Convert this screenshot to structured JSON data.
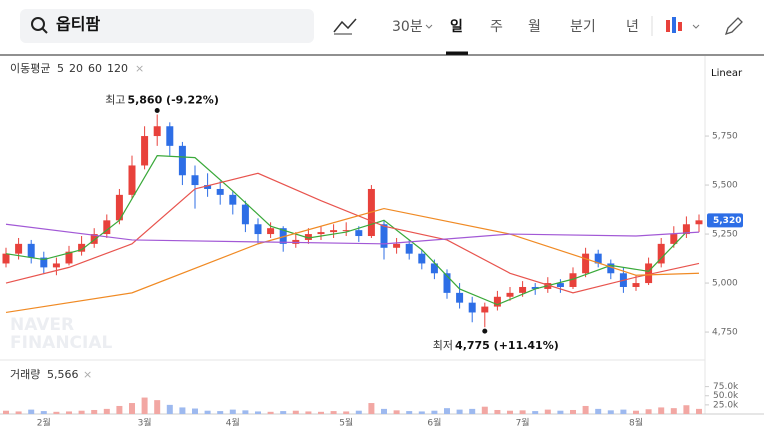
{
  "toolbar": {
    "search": "옵티팜",
    "interval": "30분",
    "periods": [
      "일",
      "주",
      "월",
      "분기",
      "년"
    ]
  },
  "indicator_label": "이동평균",
  "scale_mode": "Linear",
  "volume_label": "거래량",
  "volume_value": "5,566",
  "watermark": [
    "NAVER",
    "FINANCIAL"
  ],
  "chart_data": {
    "type": "candlestick",
    "up_color": "#e8413b",
    "down_color": "#2d6ee6",
    "categories": [
      null,
      null,
      null,
      "2월",
      null,
      null,
      null,
      null,
      null,
      null,
      null,
      "3월",
      null,
      null,
      null,
      null,
      null,
      null,
      "4월",
      null,
      null,
      null,
      null,
      null,
      null,
      null,
      null,
      "5월",
      null,
      null,
      null,
      null,
      null,
      null,
      "6월",
      null,
      null,
      null,
      null,
      null,
      null,
      "7월",
      null,
      null,
      null,
      null,
      null,
      null,
      null,
      null,
      "8월",
      null,
      null,
      null,
      null,
      null
    ],
    "open": [
      5100,
      5150,
      5200,
      5130,
      5080,
      5100,
      5160,
      5200,
      5250,
      5320,
      5450,
      5600,
      5750,
      5800,
      5700,
      5550,
      5500,
      5480,
      5450,
      5400,
      5300,
      5250,
      5280,
      5200,
      5220,
      5250,
      5260,
      5270,
      5270,
      5240,
      5300,
      5180,
      5200,
      5150,
      5100,
      5050,
      4950,
      4900,
      4850,
      4880,
      4930,
      4950,
      4980,
      4970,
      5000,
      4980,
      5050,
      5150,
      5100,
      5050,
      4980,
      5000,
      5100,
      5200,
      5250,
      5300
    ],
    "high": [
      5180,
      5230,
      5220,
      5160,
      5130,
      5190,
      5240,
      5280,
      5350,
      5480,
      5650,
      5800,
      5860,
      5820,
      5720,
      5600,
      5560,
      5520,
      5470,
      5420,
      5330,
      5310,
      5290,
      5260,
      5280,
      5290,
      5300,
      5310,
      5290,
      5500,
      5320,
      5230,
      5220,
      5170,
      5120,
      5070,
      5000,
      4930,
      4900,
      4960,
      4980,
      5010,
      5000,
      5030,
      5020,
      5080,
      5180,
      5170,
      5120,
      5080,
      5040,
      5130,
      5230,
      5290,
      5340,
      5350
    ],
    "low": [
      5080,
      5120,
      5100,
      5050,
      5040,
      5090,
      5140,
      5180,
      5230,
      5300,
      5430,
      5580,
      5700,
      5650,
      5500,
      5380,
      5440,
      5400,
      5350,
      5260,
      5200,
      5230,
      5160,
      5180,
      5200,
      5220,
      5230,
      5240,
      5210,
      5230,
      5120,
      5150,
      5120,
      5070,
      5020,
      4920,
      4870,
      4800,
      4775,
      4860,
      4910,
      4930,
      4940,
      4950,
      4950,
      4970,
      5030,
      5080,
      5020,
      4950,
      4960,
      4990,
      5080,
      5180,
      5230,
      5260
    ],
    "close": [
      5150,
      5200,
      5130,
      5080,
      5100,
      5160,
      5200,
      5250,
      5320,
      5450,
      5600,
      5750,
      5800,
      5700,
      5550,
      5500,
      5480,
      5450,
      5400,
      5300,
      5250,
      5280,
      5200,
      5220,
      5250,
      5260,
      5270,
      5270,
      5240,
      5480,
      5180,
      5200,
      5150,
      5100,
      5050,
      4950,
      4900,
      4850,
      4880,
      4930,
      4950,
      4980,
      4970,
      5000,
      4980,
      5050,
      5150,
      5100,
      5050,
      4980,
      5000,
      5100,
      5200,
      5250,
      5300,
      5320
    ],
    "volume": [
      9000,
      7000,
      12000,
      8000,
      6000,
      7000,
      9000,
      11000,
      14000,
      22000,
      30000,
      45000,
      38000,
      25000,
      18000,
      15000,
      9000,
      8000,
      12000,
      10000,
      7000,
      6000,
      8000,
      9000,
      7000,
      6000,
      8000,
      7000,
      9000,
      30000,
      14000,
      10000,
      8000,
      7000,
      9000,
      16000,
      12000,
      14000,
      20000,
      11000,
      9000,
      10000,
      8000,
      12000,
      9000,
      11000,
      22000,
      14000,
      10000,
      12000,
      9000,
      13000,
      18000,
      16000,
      24000,
      14000
    ],
    "series": [
      {
        "name": "5",
        "color": "#3aa93a",
        "x": [
          0,
          3,
          6,
          9,
          12,
          15,
          18,
          21,
          24,
          27,
          30,
          33,
          36,
          39,
          42,
          45,
          48,
          51,
          54
        ],
        "values": [
          5150,
          5120,
          5170,
          5320,
          5650,
          5640,
          5470,
          5290,
          5230,
          5260,
          5320,
          5170,
          4970,
          4890,
          4970,
          5020,
          5090,
          5060,
          5260
        ]
      },
      {
        "name": "20",
        "color": "#e8544e",
        "x": [
          0,
          5,
          10,
          15,
          20,
          25,
          30,
          35,
          40,
          45,
          50,
          55
        ],
        "values": [
          5000,
          5080,
          5200,
          5480,
          5560,
          5420,
          5290,
          5220,
          5050,
          4950,
          5030,
          5100
        ]
      },
      {
        "name": "60",
        "color": "#f08a24",
        "x": [
          0,
          10,
          20,
          30,
          40,
          50,
          55
        ],
        "values": [
          4850,
          4950,
          5200,
          5380,
          5250,
          5040,
          5050
        ]
      },
      {
        "name": "120",
        "color": "#a259d6",
        "x": [
          0,
          10,
          20,
          30,
          40,
          50,
          55
        ],
        "values": [
          5300,
          5220,
          5210,
          5200,
          5250,
          5240,
          5260
        ]
      }
    ],
    "ylim": [
      4633,
      6138
    ],
    "yticks": [
      {
        "value": 4750,
        "label": "4,750"
      },
      {
        "value": 5000,
        "label": "5,000"
      },
      {
        "value": 5250,
        "label": "5,250"
      },
      {
        "value": 5500,
        "label": "5,500"
      },
      {
        "value": 5750,
        "label": "5,750"
      }
    ],
    "volume_ylim": [
      0,
      115000
    ],
    "volume_ticks": [
      {
        "value": 25000,
        "label": "25.0k"
      },
      {
        "value": 50000,
        "label": "50.0k"
      },
      {
        "value": 75000,
        "label": "75.0k"
      }
    ],
    "annotations": [
      {
        "label": "최고",
        "value": 5860,
        "value_label": "5,860 (-9.22%)",
        "kind": "high"
      },
      {
        "label": "최저",
        "value": 4775,
        "value_label": "4,775 (+11.41%)",
        "kind": "low"
      }
    ],
    "last_price": {
      "value": 5320,
      "label": "5,320"
    }
  }
}
